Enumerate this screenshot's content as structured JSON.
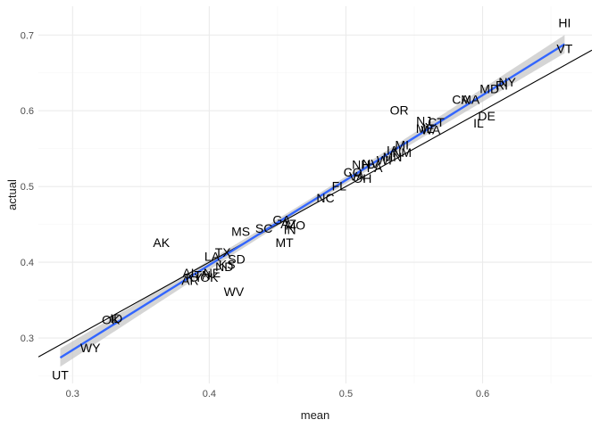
{
  "chart_data": {
    "type": "scatter",
    "title": "",
    "xlabel": "mean",
    "ylabel": "actual",
    "xlim": [
      0.275,
      0.68
    ],
    "ylim": [
      0.24,
      0.738
    ],
    "x_ticks": [
      0.3,
      0.4,
      0.5,
      0.6
    ],
    "y_ticks": [
      0.3,
      0.4,
      0.5,
      0.6,
      0.7
    ],
    "x_tick_labels": [
      "0.3",
      "0.4",
      "0.5",
      "0.6"
    ],
    "y_tick_labels": [
      "0.3",
      "0.4",
      "0.5",
      "0.6",
      "0.7"
    ],
    "grid": true,
    "legend": "none",
    "colors": {
      "fit_line": "#3366ff",
      "confidence_band": "#bebebe",
      "reference_line": "#000000",
      "grid_major": "#ebebeb",
      "grid_minor": "#f5f5f5"
    },
    "reference_line": {
      "intercept": 0,
      "slope": 1
    },
    "fit_line": {
      "x": [
        0.291,
        0.66
      ],
      "y": [
        0.274,
        0.688
      ]
    },
    "confidence_band_halfwidth": {
      "center": 0.0045,
      "ends": 0.012
    },
    "points": [
      {
        "label": "HI",
        "x": 0.66,
        "y": 0.716
      },
      {
        "label": "VT",
        "x": 0.66,
        "y": 0.682
      },
      {
        "label": "NY",
        "x": 0.618,
        "y": 0.638
      },
      {
        "label": "RI",
        "x": 0.614,
        "y": 0.634
      },
      {
        "label": "MD",
        "x": 0.605,
        "y": 0.629
      },
      {
        "label": "MA",
        "x": 0.591,
        "y": 0.615
      },
      {
        "label": "CA",
        "x": 0.584,
        "y": 0.615
      },
      {
        "label": "DE",
        "x": 0.603,
        "y": 0.593
      },
      {
        "label": "IL",
        "x": 0.597,
        "y": 0.584
      },
      {
        "label": "NJ",
        "x": 0.557,
        "y": 0.587
      },
      {
        "label": "CT",
        "x": 0.566,
        "y": 0.585
      },
      {
        "label": "WA",
        "x": 0.562,
        "y": 0.575
      },
      {
        "label": "ME",
        "x": 0.558,
        "y": 0.577
      },
      {
        "label": "OR",
        "x": 0.539,
        "y": 0.601
      },
      {
        "label": "NM",
        "x": 0.541,
        "y": 0.545
      },
      {
        "label": "MI",
        "x": 0.541,
        "y": 0.555
      },
      {
        "label": "MN",
        "x": 0.534,
        "y": 0.539
      },
      {
        "label": "PA",
        "x": 0.521,
        "y": 0.525
      },
      {
        "label": "NV",
        "x": 0.518,
        "y": 0.53
      },
      {
        "label": "NH",
        "x": 0.511,
        "y": 0.529
      },
      {
        "label": "WI",
        "x": 0.528,
        "y": 0.535
      },
      {
        "label": "IA",
        "x": 0.534,
        "y": 0.548
      },
      {
        "label": "CO",
        "x": 0.505,
        "y": 0.519
      },
      {
        "label": "VA",
        "x": 0.508,
        "y": 0.514
      },
      {
        "label": "OH",
        "x": 0.512,
        "y": 0.511
      },
      {
        "label": "FL",
        "x": 0.495,
        "y": 0.501
      },
      {
        "label": "NC",
        "x": 0.485,
        "y": 0.485
      },
      {
        "label": "GA",
        "x": 0.453,
        "y": 0.456
      },
      {
        "label": "AZ",
        "x": 0.458,
        "y": 0.451
      },
      {
        "label": "MO",
        "x": 0.463,
        "y": 0.449
      },
      {
        "label": "IN",
        "x": 0.459,
        "y": 0.443
      },
      {
        "label": "SC",
        "x": 0.44,
        "y": 0.445
      },
      {
        "label": "MS",
        "x": 0.423,
        "y": 0.441
      },
      {
        "label": "MT",
        "x": 0.455,
        "y": 0.426
      },
      {
        "label": "AK",
        "x": 0.365,
        "y": 0.426
      },
      {
        "label": "TX",
        "x": 0.41,
        "y": 0.413
      },
      {
        "label": "LA",
        "x": 0.402,
        "y": 0.408
      },
      {
        "label": "SD",
        "x": 0.42,
        "y": 0.404
      },
      {
        "label": "KS",
        "x": 0.413,
        "y": 0.397
      },
      {
        "label": "ND",
        "x": 0.411,
        "y": 0.394
      },
      {
        "label": "NE",
        "x": 0.402,
        "y": 0.386
      },
      {
        "label": "AL",
        "x": 0.386,
        "y": 0.386
      },
      {
        "label": "OK",
        "x": 0.4,
        "y": 0.38
      },
      {
        "label": "TN",
        "x": 0.395,
        "y": 0.383
      },
      {
        "label": "KY",
        "x": 0.389,
        "y": 0.38
      },
      {
        "label": "AR",
        "x": 0.386,
        "y": 0.376
      },
      {
        "label": "WV",
        "x": 0.418,
        "y": 0.361
      },
      {
        "label": "ID",
        "x": 0.332,
        "y": 0.326
      },
      {
        "label": "OK",
        "x": 0.328,
        "y": 0.324
      },
      {
        "label": "WY",
        "x": 0.313,
        "y": 0.287
      },
      {
        "label": "UT",
        "x": 0.291,
        "y": 0.251
      }
    ]
  }
}
